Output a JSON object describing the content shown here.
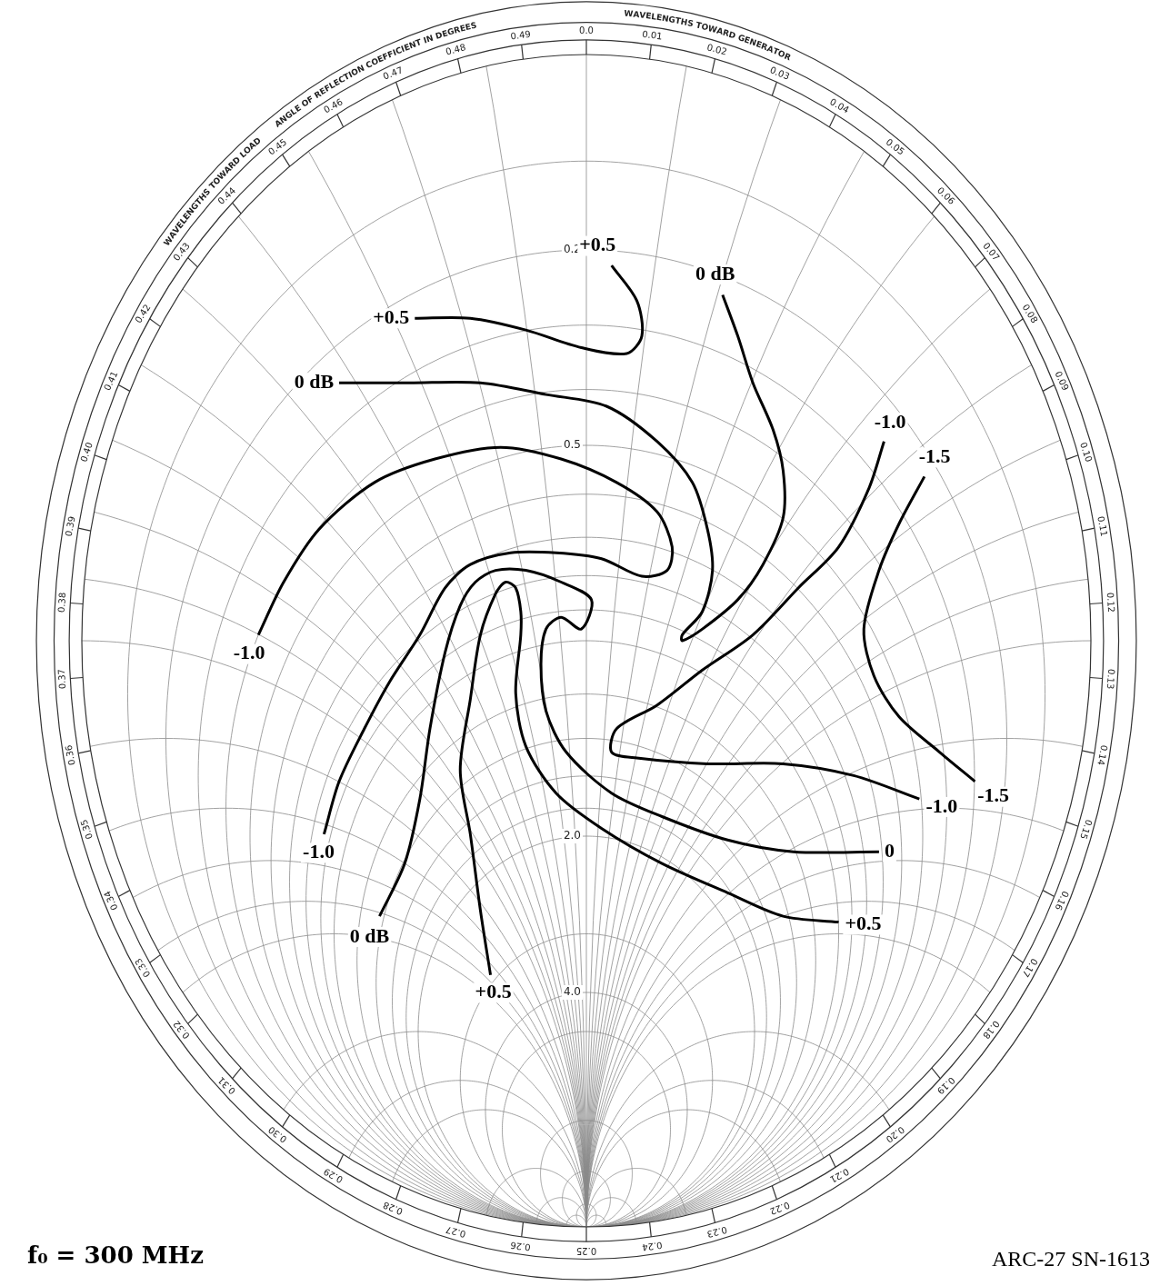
{
  "chart_data": {
    "type": "smith",
    "xlim": [
      -1,
      1
    ],
    "ylim": [
      -1,
      1
    ],
    "tick_labels": false,
    "grid": true,
    "color": "#000000",
    "series": [
      {
        "x": [
          -0.34,
          -0.23,
          -0.12,
          -0.01,
          0.08,
          0.11,
          0.1,
          0.05
        ],
        "y": [
          0.55,
          0.55,
          0.53,
          0.5,
          0.49,
          0.52,
          0.58,
          0.64
        ],
        "labels": [
          "+0.5",
          "+0.5"
        ]
      },
      {
        "x": [
          -0.49,
          -0.35,
          -0.21,
          -0.08,
          0.04,
          0.14,
          0.21,
          0.24,
          0.25,
          0.23,
          0.19,
          0.19,
          0.23,
          0.3,
          0.35,
          0.39,
          0.39,
          0.37,
          0.33,
          0.3,
          0.27
        ],
        "y": [
          0.44,
          0.44,
          0.44,
          0.42,
          0.4,
          0.34,
          0.27,
          0.19,
          0.12,
          0.05,
          0.01,
          0.0,
          0.02,
          0.07,
          0.13,
          0.21,
          0.29,
          0.36,
          0.44,
          0.52,
          0.59
        ],
        "labels": [
          "0 dB",
          "0 dB"
        ]
      },
      {
        "x": [
          -0.65,
          -0.6,
          -0.53,
          -0.42,
          -0.3,
          -0.17,
          -0.05,
          0.06,
          0.14,
          0.17,
          0.16,
          0.11,
          0.03,
          -0.06,
          -0.15,
          -0.23,
          -0.28,
          -0.33,
          -0.39,
          -0.44,
          -0.49,
          -0.52
        ],
        "y": [
          0.01,
          0.1,
          0.19,
          0.27,
          0.31,
          0.33,
          0.31,
          0.27,
          0.22,
          0.16,
          0.12,
          0.11,
          0.14,
          0.15,
          0.15,
          0.13,
          0.09,
          0.01,
          -0.07,
          -0.15,
          -0.24,
          -0.33
        ],
        "labels": [
          "-1.0",
          "-1.0"
        ]
      },
      {
        "x": [
          -0.41,
          -0.36,
          -0.33,
          -0.31,
          -0.28,
          -0.25,
          -0.22,
          -0.18,
          -0.12,
          -0.05,
          0.01,
          -0.01,
          -0.05,
          -0.08,
          -0.09,
          -0.08,
          -0.04,
          0.05,
          0.15,
          0.28,
          0.41,
          0.58
        ],
        "y": [
          -0.47,
          -0.38,
          -0.27,
          -0.15,
          -0.02,
          0.06,
          0.1,
          0.12,
          0.12,
          0.1,
          0.07,
          0.02,
          0.04,
          0.02,
          -0.04,
          -0.12,
          -0.19,
          -0.26,
          -0.3,
          -0.34,
          -0.36,
          -0.36
        ],
        "labels": [
          "0 dB",
          "0"
        ]
      },
      {
        "x": [
          -0.19,
          -0.21,
          -0.23,
          -0.25,
          -0.23,
          -0.21,
          -0.18,
          -0.16,
          -0.14,
          -0.13,
          -0.13,
          -0.14,
          -0.12,
          -0.06,
          0.03,
          0.15,
          0.28,
          0.39,
          0.5
        ],
        "y": [
          -0.57,
          -0.46,
          -0.33,
          -0.22,
          -0.1,
          0.01,
          0.08,
          0.1,
          0.09,
          0.05,
          0.01,
          -0.09,
          -0.18,
          -0.26,
          -0.32,
          -0.38,
          -0.43,
          -0.47,
          -0.48
        ],
        "labels": [
          "+0.5",
          "+0.5"
        ]
      },
      {
        "x": [
          0.59,
          0.56,
          0.5,
          0.42,
          0.33,
          0.23,
          0.14,
          0.06,
          0.05,
          0.1,
          0.24,
          0.39,
          0.53,
          0.66
        ],
        "y": [
          0.34,
          0.26,
          0.16,
          0.09,
          0.01,
          -0.05,
          -0.11,
          -0.15,
          -0.19,
          -0.2,
          -0.21,
          -0.21,
          -0.23,
          -0.27
        ],
        "labels": [
          "-1.0",
          "-1.0"
        ]
      },
      {
        "x": [
          0.67,
          0.62,
          0.58,
          0.55,
          0.57,
          0.62,
          0.7,
          0.77
        ],
        "y": [
          0.28,
          0.2,
          0.12,
          0.02,
          -0.06,
          -0.13,
          -0.19,
          -0.24
        ],
        "labels": [
          "-1.5",
          "-1.5"
        ]
      }
    ],
    "smith_grid": {
      "resistance": [
        0.1,
        0.2,
        0.3,
        0.4,
        0.5,
        0.6,
        0.7,
        0.8,
        0.9,
        1,
        1.2,
        1.4,
        1.6,
        1.8,
        2,
        3,
        4,
        5,
        10,
        20,
        50
      ],
      "reactance": [
        0.1,
        0.2,
        0.3,
        0.4,
        0.5,
        0.6,
        0.7,
        0.8,
        0.9,
        1,
        1.2,
        1.4,
        1.6,
        1.8,
        2,
        3,
        4,
        5,
        10,
        20,
        50
      ],
      "resistance_labels": [
        0.2,
        0.5,
        {
          "value": 2,
          "label": "2.0"
        },
        {
          "value": 4,
          "label": "4.0"
        }
      ]
    },
    "rim": {
      "generator_title": "WAVELENGTHS TOWARD GENERATOR",
      "load_title": "WAVELENGTHS TOWARD LOAD",
      "angle_title": "ANGLE OF REFLECTION COEFFICIENT IN DEGREES",
      "wavelength_ticks": [
        {
          "value": 0,
          "label": "0.0"
        },
        0.01,
        0.02,
        0.03,
        0.04,
        0.05,
        0.06,
        0.07,
        0.08,
        0.09,
        {
          "value": 0.1,
          "label": "0.10"
        },
        0.11,
        0.12,
        0.13,
        0.14,
        0.15,
        0.16,
        0.17,
        0.18,
        0.19,
        {
          "value": 0.2,
          "label": "0.20"
        },
        0.21,
        0.22,
        0.23,
        0.24,
        0.25,
        0.26,
        0.27,
        0.28,
        0.29,
        {
          "value": 0.3,
          "label": "0.30"
        },
        0.31,
        0.32,
        0.33,
        0.34,
        0.35,
        0.36,
        0.37,
        0.38,
        0.39,
        {
          "value": 0.4,
          "label": "0.40"
        },
        0.41,
        0.42,
        0.43,
        0.44,
        0.45,
        0.46,
        0.47,
        0.48,
        0.49
      ]
    },
    "annotations": [
      "f₀ = 300 MHz",
      "ARC-27  SN-1613"
    ]
  }
}
